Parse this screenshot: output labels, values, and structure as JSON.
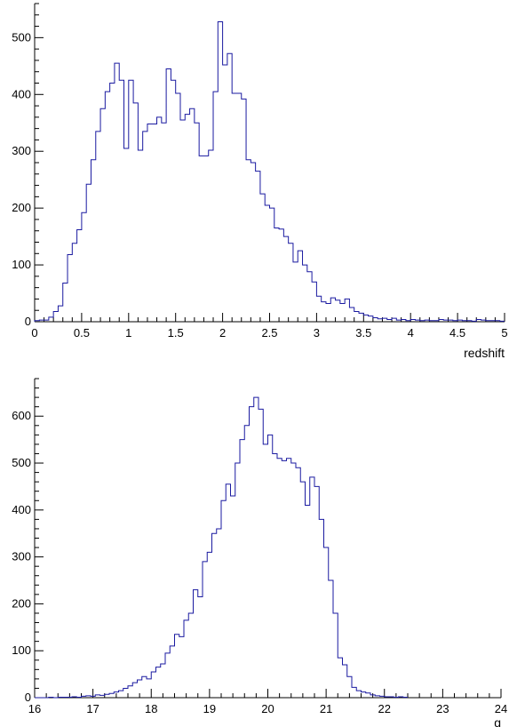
{
  "colors": {
    "series": "#1a1aa0",
    "axis": "#000000"
  },
  "chart_data": [
    {
      "type": "histogram",
      "xlabel": "redshift",
      "ylabel": "",
      "xlim": [
        0,
        5
      ],
      "ylim": [
        0,
        560
      ],
      "x_ticks": [
        0,
        0.5,
        1,
        1.5,
        2,
        2.5,
        3,
        3.5,
        4,
        4.5,
        5
      ],
      "x_tick_labels": [
        "0",
        "0.5",
        "1",
        "1.5",
        "2",
        "2.5",
        "3",
        "3.5",
        "4",
        "4.5",
        "5"
      ],
      "y_ticks": [
        0,
        100,
        200,
        300,
        400,
        500
      ],
      "y_tick_labels": [
        "0",
        "100",
        "200",
        "300",
        "400",
        "500"
      ],
      "bin_edges_start": 0,
      "bin_width": 0.05,
      "counts": [
        2,
        3,
        3,
        8,
        18,
        28,
        68,
        118,
        138,
        162,
        192,
        242,
        285,
        335,
        375,
        405,
        420,
        455,
        425,
        305,
        425,
        385,
        302,
        335,
        348,
        348,
        360,
        350,
        445,
        425,
        402,
        355,
        365,
        375,
        350,
        292,
        292,
        302,
        405,
        528,
        452,
        472,
        402,
        402,
        392,
        285,
        280,
        265,
        225,
        205,
        200,
        165,
        163,
        150,
        138,
        105,
        125,
        100,
        88,
        70,
        45,
        35,
        32,
        42,
        38,
        32,
        40,
        25,
        18,
        15,
        12,
        10,
        7,
        5,
        6,
        4,
        6,
        3,
        4,
        2,
        4,
        3,
        2,
        3,
        2,
        2,
        4,
        3,
        3,
        2,
        3,
        2,
        2,
        1,
        4,
        3,
        2,
        2,
        2,
        1
      ]
    },
    {
      "type": "histogram",
      "xlabel": "g",
      "ylabel": "",
      "xlim": [
        16,
        24
      ],
      "ylim": [
        0,
        680
      ],
      "x_ticks": [
        16,
        17,
        18,
        19,
        20,
        21,
        22,
        23,
        24
      ],
      "x_tick_labels": [
        "16",
        "17",
        "18",
        "19",
        "20",
        "21",
        "22",
        "23",
        "24"
      ],
      "y_ticks": [
        0,
        100,
        200,
        300,
        400,
        500,
        600
      ],
      "y_tick_labels": [
        "0",
        "100",
        "200",
        "300",
        "400",
        "500",
        "600"
      ],
      "bin_edges_start": 16,
      "bin_width": 0.08,
      "counts": [
        0,
        0,
        0,
        1,
        0,
        1,
        1,
        1,
        2,
        1,
        3,
        4,
        3,
        6,
        5,
        7,
        9,
        12,
        15,
        20,
        25,
        32,
        38,
        45,
        40,
        55,
        65,
        72,
        95,
        110,
        135,
        130,
        165,
        180,
        230,
        215,
        290,
        310,
        350,
        360,
        420,
        455,
        430,
        500,
        550,
        580,
        620,
        640,
        615,
        540,
        560,
        520,
        510,
        505,
        510,
        500,
        490,
        460,
        410,
        470,
        450,
        380,
        320,
        250,
        180,
        85,
        70,
        45,
        22,
        15,
        12,
        10,
        6,
        4,
        3,
        2,
        2,
        1,
        2,
        1
      ]
    }
  ]
}
